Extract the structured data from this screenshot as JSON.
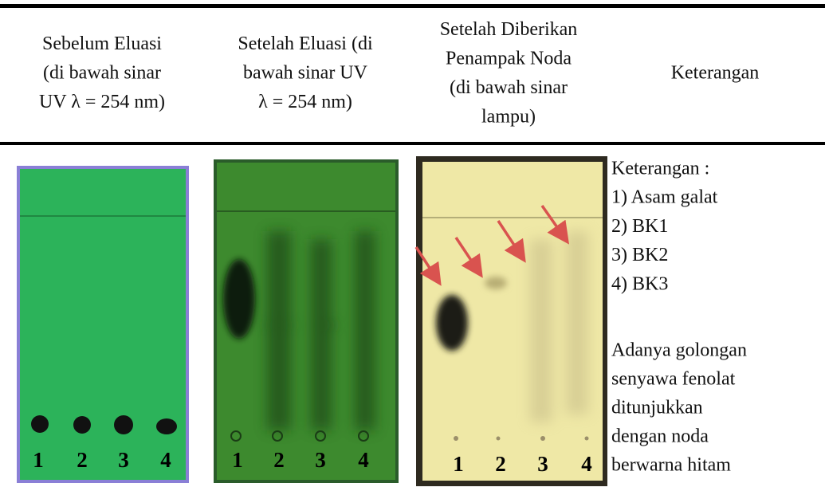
{
  "table": {
    "headers": [
      [
        "Sebelum Eluasi",
        "(di bawah sinar",
        "UV λ = 254 nm)"
      ],
      [
        "Setelah Eluasi (di",
        "bawah sinar UV",
        "λ = 254 nm)"
      ],
      [
        "Setelah Diberikan",
        "Penampak Noda",
        "(di bawah sinar",
        "lampu)"
      ],
      [
        "Keterangan"
      ]
    ],
    "plates": [
      {
        "lanes": [
          "1",
          "2",
          "3",
          "4"
        ]
      },
      {
        "lanes": [
          "1",
          "2",
          "3",
          "4"
        ]
      },
      {
        "lanes": [
          "1",
          "2",
          "3",
          "4"
        ]
      }
    ],
    "legend": [
      "Keterangan :",
      "1) Asam galat",
      "2) BK1",
      "3) BK2",
      "4) BK3"
    ],
    "note": [
      "Adanya golongan",
      "senyawa fenolat",
      "ditunjukkan",
      "dengan noda",
      "berwarna hitam"
    ]
  }
}
